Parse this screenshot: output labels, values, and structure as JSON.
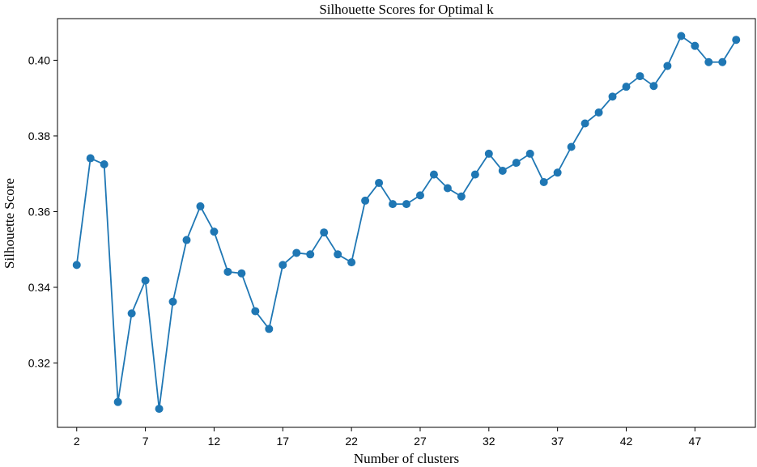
{
  "chart_data": {
    "type": "line",
    "title": "Silhouette Scores for Optimal k",
    "xlabel": "Number of clusters",
    "ylabel": "Silhouette Score",
    "xlim": [
      0.6,
      51.4
    ],
    "ylim": [
      0.303,
      0.411
    ],
    "xticks": [
      2,
      7,
      12,
      17,
      22,
      27,
      32,
      37,
      42,
      47
    ],
    "yticks": [
      0.32,
      0.34,
      0.36,
      0.38,
      0.4
    ],
    "ytick_labels": [
      "0.32",
      "0.34",
      "0.36",
      "0.38",
      "0.40"
    ],
    "grid": false,
    "color": "#1f77b4",
    "marker": "circle",
    "x": [
      2,
      3,
      4,
      5,
      6,
      7,
      8,
      9,
      10,
      11,
      12,
      13,
      14,
      15,
      16,
      17,
      18,
      19,
      20,
      21,
      22,
      23,
      24,
      25,
      26,
      27,
      28,
      29,
      30,
      31,
      32,
      33,
      34,
      35,
      36,
      37,
      38,
      39,
      40,
      41,
      42,
      43,
      44,
      45,
      46,
      47,
      48,
      49,
      50
    ],
    "values": [
      0.3459,
      0.3741,
      0.3725,
      0.3097,
      0.3331,
      0.3418,
      0.3079,
      0.3362,
      0.3525,
      0.3614,
      0.3547,
      0.3441,
      0.3437,
      0.3337,
      0.329,
      0.3459,
      0.3491,
      0.3487,
      0.3545,
      0.3487,
      0.3466,
      0.3629,
      0.3676,
      0.362,
      0.362,
      0.3643,
      0.3698,
      0.3662,
      0.364,
      0.3698,
      0.3753,
      0.3708,
      0.3729,
      0.3753,
      0.3678,
      0.3703,
      0.3771,
      0.3833,
      0.3862,
      0.3904,
      0.393,
      0.3958,
      0.3932,
      0.3985,
      0.4064,
      0.4038,
      0.3995,
      0.3995,
      0.4054
    ]
  }
}
